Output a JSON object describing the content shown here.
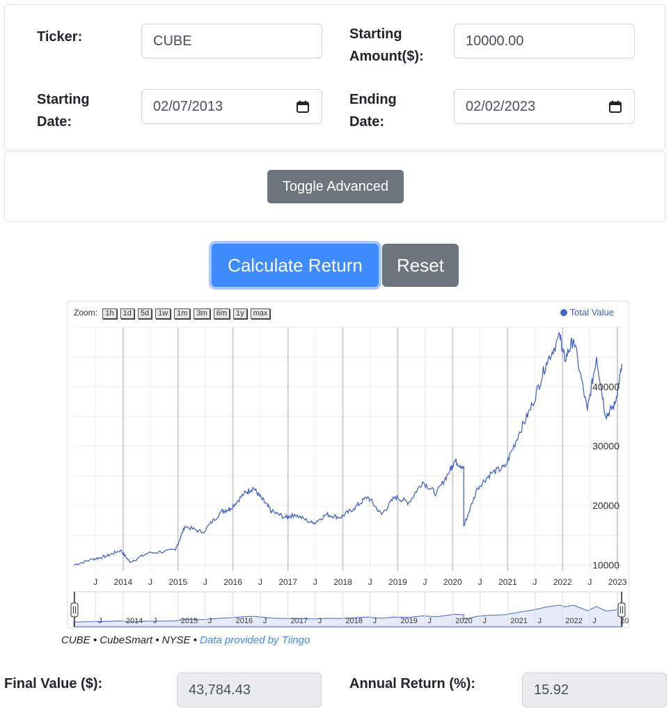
{
  "form": {
    "ticker_label": "Ticker:",
    "ticker_value": "CUBE",
    "starting_amount_label_line1": "Starting",
    "starting_amount_label_line2": "Amount($):",
    "starting_amount_value": "10000.00",
    "starting_date_label_line1": "Starting",
    "starting_date_label_line2": "Date:",
    "starting_date_value": "02/07/2013",
    "ending_date_label_line1": "Ending",
    "ending_date_label_line2": "Date:",
    "ending_date_value": "02/02/2023",
    "calendar_icon": "calendar-icon"
  },
  "advanced": {
    "toggle_label": "Toggle Advanced"
  },
  "actions": {
    "calculate_label": "Calculate Return",
    "reset_label": "Reset"
  },
  "colors": {
    "primary": "#3d8bfd",
    "secondary": "#6c757d",
    "series": "#4466cc",
    "link": "#3d8bfd"
  },
  "chart": {
    "zoom_label": "Zoom:",
    "zoom_buttons": [
      "1h",
      "1d",
      "5d",
      "1w",
      "1m",
      "3m",
      "6m",
      "1y",
      "max"
    ],
    "legend_label": "Total Value",
    "caption_prefix": "CUBE • CubeSmart • NYSE • ",
    "caption_link": "Data provided by Tiingo"
  },
  "chart_data": {
    "type": "line",
    "series": [
      {
        "name": "Total Value",
        "x": [
          "2013-02",
          "2013-06",
          "2013-09",
          "2013-12",
          "2014-02",
          "2014-06",
          "2014-12",
          "2015-02",
          "2015-06",
          "2015-10",
          "2015-12",
          "2016-03",
          "2016-05",
          "2016-07",
          "2016-09",
          "2016-12",
          "2017-02",
          "2017-06",
          "2017-09",
          "2017-12",
          "2018-03",
          "2018-06",
          "2018-09",
          "2018-12",
          "2019-03",
          "2019-06",
          "2019-09",
          "2019-12",
          "2020-01",
          "2020-03",
          "2020-03",
          "2020-06",
          "2020-09",
          "2020-12",
          "2021-03",
          "2021-06",
          "2021-09",
          "2021-12",
          "2022-01",
          "2022-03",
          "2022-06",
          "2022-08",
          "2022-10",
          "2022-12",
          "2023-02"
        ],
        "y": [
          10000,
          11000,
          11500,
          12500,
          10500,
          12000,
          12500,
          16500,
          15500,
          19000,
          19500,
          22000,
          23000,
          21000,
          19000,
          18000,
          18500,
          17000,
          18500,
          18000,
          19500,
          21500,
          18500,
          21500,
          20500,
          24000,
          22000,
          26000,
          27500,
          26500,
          16500,
          23000,
          25500,
          26500,
          32000,
          37000,
          44000,
          48500,
          44500,
          48000,
          36000,
          45000,
          35000,
          37000,
          43800
        ]
      }
    ],
    "x_ticks": [
      "J",
      "2014",
      "J",
      "2015",
      "J",
      "2016",
      "J",
      "2017",
      "J",
      "2018",
      "J",
      "2019",
      "J",
      "2020",
      "J",
      "2021",
      "J",
      "2022",
      "J",
      "2023"
    ],
    "y_ticks": [
      10000,
      20000,
      30000,
      40000
    ],
    "ylim": [
      9000,
      50000
    ],
    "navigator_ticks": [
      "J",
      "2014",
      "J",
      "2015",
      "J",
      "2016",
      "J",
      "2017",
      "J",
      "2018",
      "J",
      "2019",
      "J",
      "2020",
      "J",
      "2021",
      "J",
      "2022",
      "J",
      "2023"
    ],
    "legend": "top-right",
    "grid": true
  },
  "results": {
    "final_value_label": "Final Value ($):",
    "final_value": "43,784.43",
    "annual_return_label": "Annual Return (%):",
    "annual_return": "15.92"
  }
}
